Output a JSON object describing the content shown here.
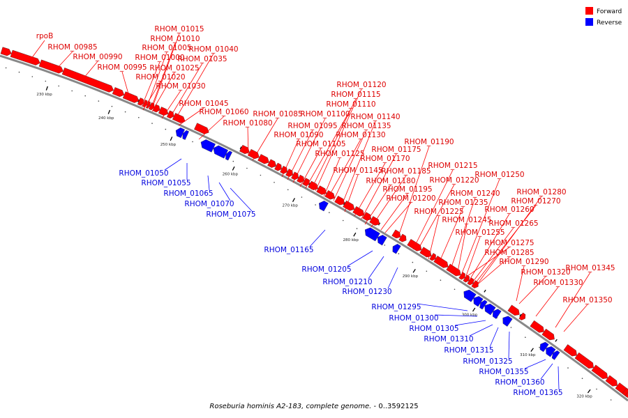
{
  "caption": {
    "organism": "Roseburia hominis A2-183, complete genome.",
    "range": " - 0..3592125"
  },
  "legend": [
    {
      "label": "Forward",
      "color": "#ff0000"
    },
    {
      "label": "Reverse",
      "color": "#0000ff"
    }
  ],
  "colors": {
    "forward": "#ff0000",
    "reverse": "#0000ff",
    "backbone": "#888888",
    "forward_label": "#dd0000",
    "reverse_label": "#0000dd"
  },
  "ticks": [
    "230 kbp",
    "240 kbp",
    "250 kbp",
    "260 kbp",
    "270 kbp",
    "280 kbp",
    "290 kbp",
    "300 kbp",
    "310 kbp",
    "320 kbp"
  ],
  "forward_genes": [
    "rpoB",
    "RHOM_00985",
    "RHOM_00990",
    "RHOM_00995",
    "RHOM_01000",
    "RHOM_01005",
    "RHOM_01010",
    "RHOM_01015",
    "RHOM_01020",
    "RHOM_01025",
    "RHOM_01030",
    "RHOM_01035",
    "RHOM_01040",
    "RHOM_01045",
    "RHOM_01060",
    "RHOM_01080",
    "RHOM_01085",
    "RHOM_01090",
    "RHOM_01095",
    "RHOM_01100",
    "RHOM_01105",
    "RHOM_01110",
    "RHOM_01115",
    "RHOM_01120",
    "RHOM_01125",
    "RHOM_01130",
    "RHOM_01135",
    "RHOM_01140",
    "RHOM_01145",
    "RHOM_01170",
    "RHOM_01175",
    "RHOM_01180",
    "RHOM_01185",
    "RHOM_01190",
    "RHOM_01195",
    "RHOM_01200",
    "RHOM_01215",
    "RHOM_01220",
    "RHOM_01225",
    "RHOM_01235",
    "RHOM_01240",
    "RHOM_01245",
    "RHOM_01250",
    "RHOM_01255",
    "RHOM_01260",
    "RHOM_01265",
    "RHOM_01270",
    "RHOM_01275",
    "RHOM_01280",
    "RHOM_01285",
    "RHOM_01290",
    "RHOM_01320",
    "RHOM_01330",
    "RHOM_01345",
    "RHOM_01350"
  ],
  "reverse_genes": [
    "RHOM_01050",
    "RHOM_01055",
    "RHOM_01065",
    "RHOM_01070",
    "RHOM_01075",
    "RHOM_01165",
    "RHOM_01205",
    "RHOM_01210",
    "RHOM_01230",
    "RHOM_01295",
    "RHOM_01300",
    "RHOM_01305",
    "RHOM_01310",
    "RHOM_01315",
    "RHOM_01325",
    "RHOM_01355",
    "RHOM_01360",
    "RHOM_01365"
  ]
}
